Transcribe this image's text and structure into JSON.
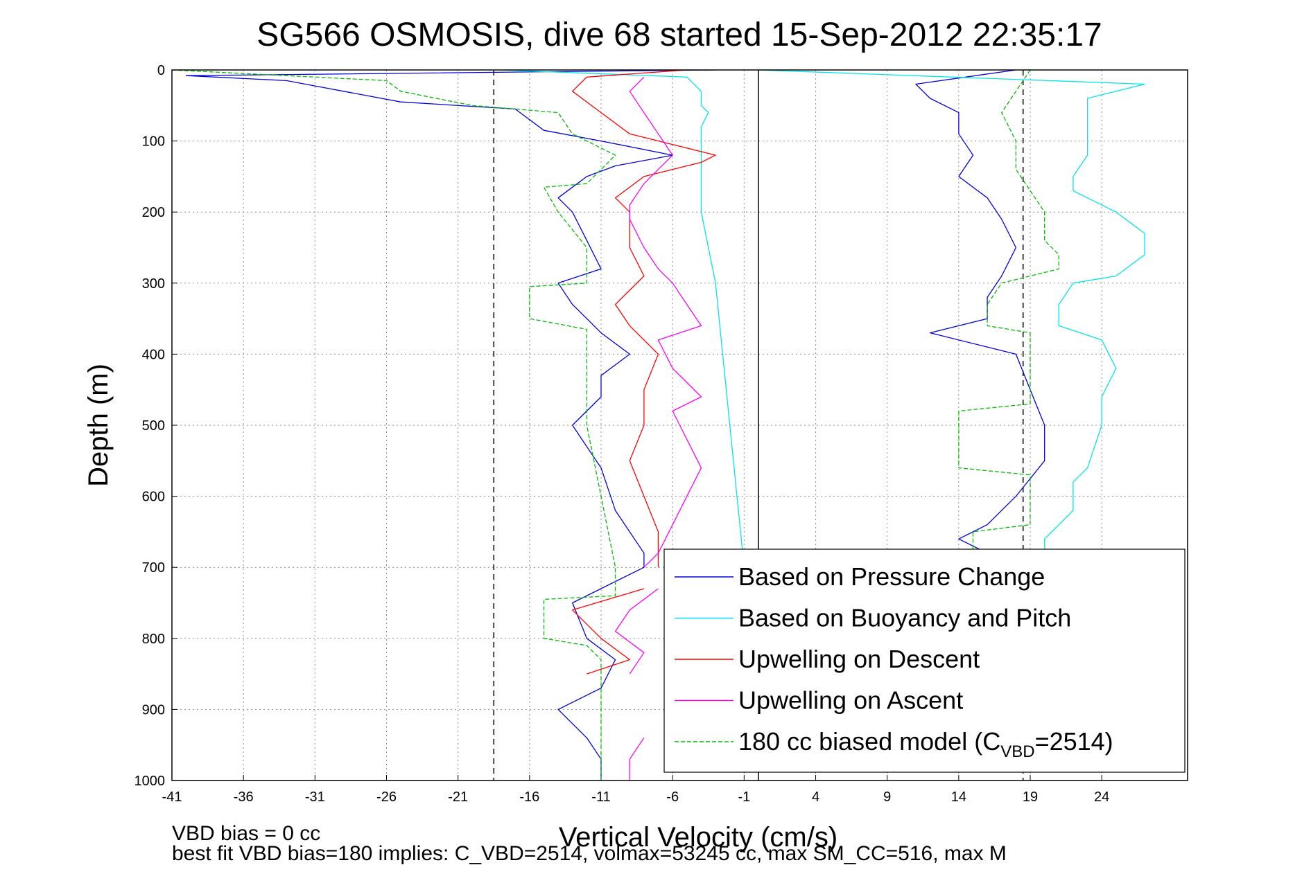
{
  "chart_data": {
    "type": "line",
    "title": "SG566 OSMOSIS, dive 68 started 15-Sep-2012 22:35:17",
    "xlabel": "Vertical Velocity (cm/s)",
    "ylabel": "Depth (m)",
    "xlim": [
      -41,
      30
    ],
    "ylim": [
      0,
      1000
    ],
    "y_reversed": true,
    "grid": true,
    "legend_placement": "bottom-right",
    "x_ticks": [
      "-41",
      "-36",
      "-31",
      "-26",
      "-21",
      "-16",
      "-11",
      "-6",
      "-1",
      "4",
      "9",
      "14",
      "19",
      "24"
    ],
    "y_ticks": [
      "0",
      "100",
      "200",
      "300",
      "400",
      "500",
      "600",
      "700",
      "800",
      "900",
      "1000"
    ],
    "reference_lines": [
      {
        "x": -18.5,
        "style": "dashed",
        "color": "#000000"
      },
      {
        "x": 0,
        "style": "solid",
        "color": "#000000"
      },
      {
        "x": 18.5,
        "style": "dashed",
        "color": "#000000"
      }
    ],
    "series": [
      {
        "name": "Based on Pressure Change",
        "color": "#0000dd",
        "style": "solid",
        "segments": [
          {
            "depth": [
              0,
              8,
              15,
              30,
              45,
              55,
              70,
              85,
              100,
              120,
              135,
              150,
              165,
              180,
              200,
              240,
              280,
              300,
              330,
              350,
              370,
              400,
              430,
              460,
              500,
              560,
              620,
              680,
              700,
              750,
              800,
              830,
              870,
              900,
              940,
              970,
              1000
            ],
            "x": [
              -3,
              -40,
              -33,
              -29,
              -25,
              -17,
              -16,
              -15,
              -11,
              -6,
              -10,
              -12,
              -13,
              -14,
              -13,
              -12,
              -11,
              -14,
              -13,
              -12,
              -11,
              -9,
              -11,
              -11,
              -13,
              -11,
              -10,
              -8,
              -8,
              -13,
              -12,
              -10,
              -11,
              -14,
              -12,
              -11,
              -11
            ]
          },
          {
            "depth": [
              0,
              20,
              40,
              60,
              90,
              120,
              150,
              180,
              210,
              250,
              290,
              320,
              350,
              370,
              400,
              450,
              500,
              550,
              600,
              640,
              660,
              680
            ],
            "x": [
              18,
              11,
              12,
              14,
              14,
              15,
              14,
              16,
              17,
              18,
              17,
              16,
              16,
              12,
              18,
              19,
              20,
              20,
              18,
              16,
              14,
              16
            ]
          }
        ]
      },
      {
        "name": "Based on Buoyancy and Pitch",
        "color": "#00e5e5",
        "style": "solid",
        "segments": [
          {
            "depth": [
              0,
              10,
              30,
              50,
              60,
              80,
              100,
              150,
              200,
              300,
              400,
              500,
              600,
              700
            ],
            "x": [
              -18,
              -5,
              -4,
              -4,
              -3.5,
              -4,
              -4,
              -4,
              -4,
              -3,
              -2.5,
              -2,
              -1.5,
              -1
            ]
          },
          {
            "depth": [
              0,
              20,
              40,
              60,
              90,
              120,
              150,
              170,
              200,
              230,
              260,
              290,
              300,
              330,
              360,
              380,
              420,
              460,
              500,
              560,
              580,
              620,
              660,
              700
            ],
            "x": [
              0,
              27,
              23,
              23,
              23,
              23,
              22,
              22,
              25,
              27,
              27,
              25,
              22,
              21,
              21,
              24,
              25,
              24,
              24,
              23,
              22,
              22,
              20,
              20
            ]
          }
        ]
      },
      {
        "name": "Upwelling on Descent",
        "color": "#ff0000",
        "style": "solid",
        "segments": [
          {
            "depth": [
              0,
              10,
              30,
              60,
              90,
              120,
              130,
              150,
              180,
              200,
              250,
              290,
              330,
              360,
              400,
              450,
              500,
              550,
              600,
              650,
              700
            ],
            "x": [
              -5,
              -12,
              -13,
              -11,
              -9,
              -3,
              -4,
              -8,
              -10,
              -9,
              -9,
              -8,
              -10,
              -9,
              -7,
              -8,
              -8,
              -9,
              -8,
              -7,
              -7
            ]
          },
          {
            "depth": [
              730,
              760,
              800,
              830,
              850
            ],
            "x": [
              -8,
              -13,
              -11,
              -9,
              -12
            ]
          }
        ]
      },
      {
        "name": "Upwelling on Ascent",
        "color": "#ff00ff",
        "style": "solid",
        "segments": [
          {
            "depth": [
              10,
              30,
              60,
              90,
              120,
              140,
              160,
              190,
              210,
              250,
              280,
              300,
              330,
              360,
              380,
              420,
              460,
              480,
              520,
              560,
              600,
              640,
              680,
              700
            ],
            "x": [
              -8,
              -9,
              -8,
              -7,
              -6,
              -7,
              -8,
              -9,
              -9,
              -8,
              -7,
              -6,
              -5,
              -4,
              -7,
              -6,
              -4,
              -6,
              -5,
              -4,
              -5,
              -6,
              -7,
              -8
            ]
          },
          {
            "depth": [
              730,
              760,
              790,
              820,
              850
            ],
            "x": [
              -7,
              -9,
              -10,
              -8,
              -9
            ]
          },
          {
            "depth": [
              940,
              970,
              1000
            ],
            "x": [
              -8,
              -9,
              -9
            ]
          }
        ]
      },
      {
        "name": "180 cc biased model (C<sub>VBD</sub>=2514)",
        "name_text": "180 cc biased model (C",
        "name_sub": "VBD",
        "name_tail": "=2514)",
        "color": "#00bb00",
        "style": "dashed",
        "segments": [
          {
            "depth": [
              0,
              15,
              30,
              50,
              60,
              90,
              120,
              160,
              165,
              200,
              250,
              300,
              305,
              350,
              365,
              380,
              450,
              500,
              600,
              700,
              740,
              745,
              800,
              810,
              830,
              900,
              1000
            ],
            "x": [
              -41,
              -26,
              -25,
              -20,
              -14,
              -13,
              -10,
              -12,
              -15,
              -14,
              -12,
              -12,
              -16,
              -16,
              -12,
              -12,
              -12,
              -12,
              -11,
              -10,
              -10,
              -15,
              -15,
              -12,
              -11,
              -11,
              -11
            ]
          },
          {
            "depth": [
              0,
              30,
              60,
              100,
              140,
              170,
              200,
              240,
              260,
              280,
              300,
              330,
              360,
              370,
              400,
              470,
              480,
              560,
              570,
              640,
              650,
              690
            ],
            "x": [
              19,
              18,
              17,
              18,
              18,
              19,
              20,
              20,
              21,
              21,
              17,
              16,
              16,
              19,
              19,
              19,
              14,
              14,
              19,
              19,
              15,
              15
            ]
          }
        ]
      }
    ],
    "annotations": [
      "VBD bias = 0 cc",
      "best fit VBD bias=180 implies: C_VBD=2514, volmax=53245 cc, max SM_CC=516, max M"
    ]
  }
}
